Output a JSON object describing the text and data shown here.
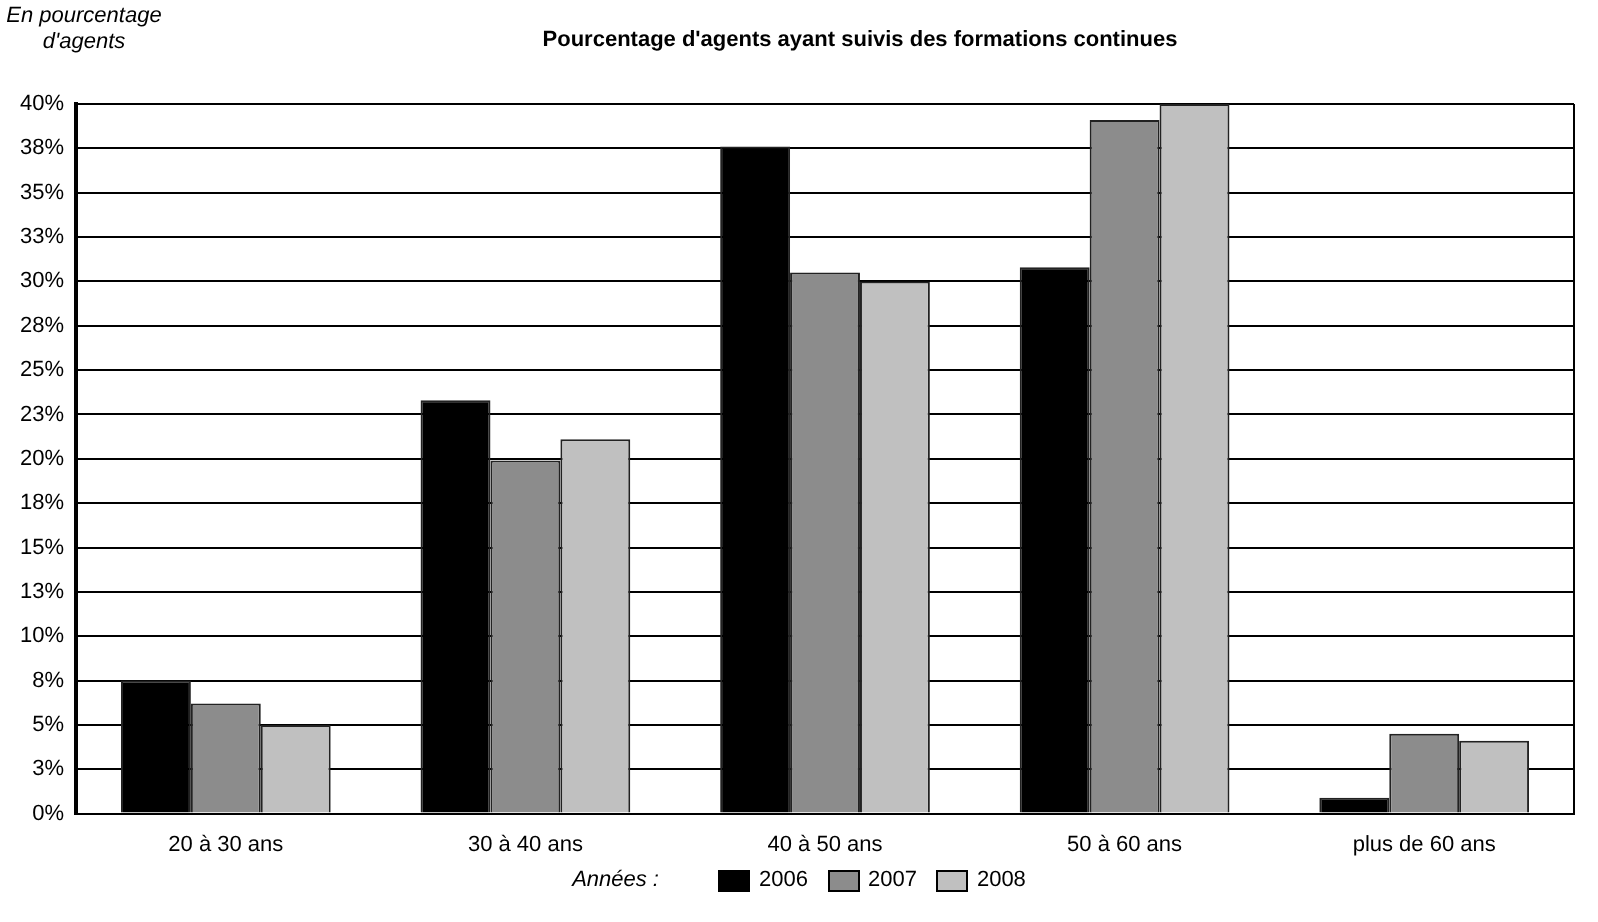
{
  "chart_data": {
    "type": "bar",
    "title": "Pourcentage d'agents ayant suivis des formations continues",
    "ylabel": "En pourcentage d'agents",
    "legend_title": "Années :",
    "categories": [
      "20 à 30 ans",
      "30 à 40 ans",
      "40 à 50 ans",
      "50 à 60 ans",
      "plus de 60 ans"
    ],
    "series": [
      {
        "name": "2006",
        "color": "#000000",
        "values": [
          7.5,
          23.3,
          37.6,
          30.8,
          0.9
        ]
      },
      {
        "name": "2007",
        "color": "#8c8c8c",
        "values": [
          6.2,
          19.9,
          30.5,
          39.1,
          4.5
        ]
      },
      {
        "name": "2008",
        "color": "#c0c0c0",
        "values": [
          5.0,
          21.1,
          30.0,
          40.0,
          4.1
        ]
      }
    ],
    "ylim": [
      0,
      40
    ],
    "yticks": [
      "0%",
      {
        "value": 2.5,
        "label": "3%"
      },
      "5%",
      {
        "value": 7.5,
        "label": "8%"
      },
      "10%",
      {
        "value": 12.5,
        "label": "13%"
      },
      "15%",
      {
        "value": 17.5,
        "label": "18%"
      },
      "20%",
      {
        "value": 22.5,
        "label": "23%"
      },
      "25%",
      {
        "value": 27.5,
        "label": "28%"
      },
      "30%",
      {
        "value": 32.5,
        "label": "33%"
      },
      "35%",
      {
        "value": 37.5,
        "label": "38%"
      },
      "40%"
    ],
    "grid": "y",
    "legend": "bottom"
  }
}
